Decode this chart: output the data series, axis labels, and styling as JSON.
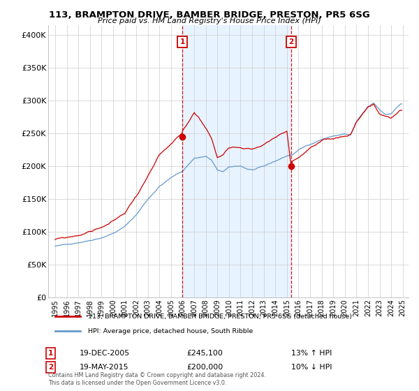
{
  "title": "113, BRAMPTON DRIVE, BAMBER BRIDGE, PRESTON, PR5 6SG",
  "subtitle": "Price paid vs. HM Land Registry's House Price Index (HPI)",
  "background_color": "#ffffff",
  "plot_bg_color": "#ffffff",
  "ylabel_ticks": [
    "£0",
    "£50K",
    "£100K",
    "£150K",
    "£200K",
    "£250K",
    "£300K",
    "£350K",
    "£400K"
  ],
  "ytick_vals": [
    0,
    50000,
    100000,
    150000,
    200000,
    250000,
    300000,
    350000,
    400000
  ],
  "ylim": [
    0,
    415000
  ],
  "xtick_years": [
    1995,
    1996,
    1997,
    1998,
    1999,
    2000,
    2001,
    2002,
    2003,
    2004,
    2005,
    2006,
    2007,
    2008,
    2009,
    2010,
    2011,
    2012,
    2013,
    2014,
    2015,
    2016,
    2017,
    2018,
    2019,
    2020,
    2021,
    2022,
    2023,
    2024,
    2025
  ],
  "sale1_year": 2005.97,
  "sale1_price": 245100,
  "sale2_year": 2015.38,
  "sale2_price": 200000,
  "legend_line1": "113, BRAMPTON DRIVE, BAMBER BRIDGE, PRESTON, PR5 6SG (detached house)",
  "legend_line2": "HPI: Average price, detached house, South Ribble",
  "annotation1_date": "19-DEC-2005",
  "annotation1_price": "£245,100",
  "annotation1_hpi": "13% ↑ HPI",
  "annotation2_date": "19-MAY-2015",
  "annotation2_price": "£200,000",
  "annotation2_hpi": "10% ↓ HPI",
  "footer": "Contains HM Land Registry data © Crown copyright and database right 2024.\nThis data is licensed under the Open Government Licence v3.0.",
  "red_color": "#cc0000",
  "blue_color": "#6699cc",
  "blue_fill": "#ddeeff",
  "grid_color": "#cccccc"
}
